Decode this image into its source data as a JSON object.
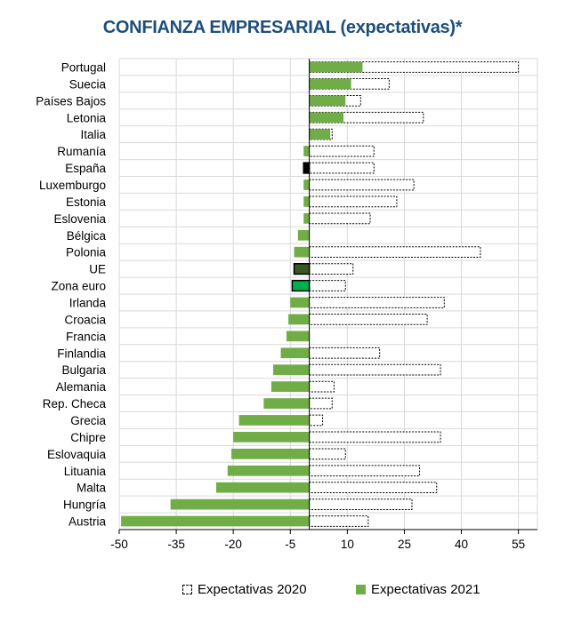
{
  "chart_data": {
    "type": "bar",
    "orientation": "horizontal",
    "title": "CONFIANZA EMPRESARIAL (expectativas)*",
    "xlabel": "",
    "ylabel": "",
    "xlim": [
      -50,
      60
    ],
    "xticks": [
      -50,
      -35,
      -20,
      -5,
      10,
      25,
      40,
      55
    ],
    "grid": true,
    "legend_position": "bottom",
    "categories": [
      "Portugal",
      "Suecia",
      "Países Bajos",
      "Letonia",
      "Italia",
      "Rumanía",
      "España",
      "Luxemburgo",
      "Estonia",
      "Eslovenia",
      "Bélgica",
      "Polonia",
      "UE",
      "Zona euro",
      "Irlanda",
      "Croacia",
      "Francia",
      "Finlandia",
      "Bulgaria",
      "Alemania",
      "Rep. Checa",
      "Grecia",
      "Chipre",
      "Eslovaquia",
      "Lituania",
      "Malta",
      "Hungría",
      "Austria"
    ],
    "series": [
      {
        "name": "Expectativas 2020",
        "color": "#ffffff",
        "stroke": "#000000",
        "dashed": true,
        "values": [
          55,
          21,
          13.5,
          30,
          6,
          17,
          17,
          27.5,
          23,
          16,
          0,
          45,
          11.5,
          9.5,
          35.5,
          31,
          0,
          18.5,
          34.5,
          6.5,
          6,
          3.5,
          34.5,
          9.5,
          29,
          33.5,
          27,
          15.5
        ]
      },
      {
        "name": "Expectativas 2021",
        "color": "#70ad47",
        "values": [
          14,
          11,
          9.5,
          9,
          5.5,
          -1.5,
          -1.5,
          -1.5,
          -1.5,
          -1.5,
          -3,
          -4,
          -4,
          -4.5,
          -5,
          -5.5,
          -6,
          -7.5,
          -9.5,
          -10,
          -12,
          -18.5,
          -20,
          -20.5,
          -21.5,
          -24.5,
          -36.5,
          -49.5
        ],
        "highlight": {
          "España": "#000000",
          "UE": "#385723",
          "Zona euro": "#00b050"
        }
      }
    ]
  },
  "legend": {
    "item_2020": "Expectativas 2020",
    "item_2021": "Expectativas 2021"
  }
}
